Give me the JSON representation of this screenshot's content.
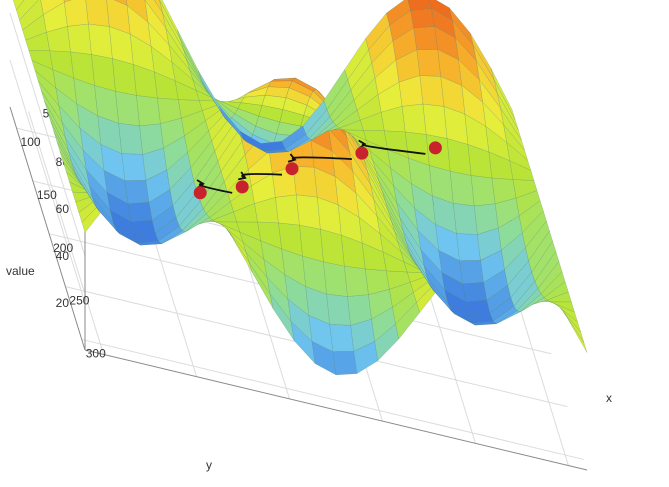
{
  "chart_data": {
    "type": "surface",
    "title": "",
    "xlabel": "x",
    "ylabel": "y",
    "zlabel": "value",
    "x_ticks": [
      50,
      100,
      150,
      200,
      250,
      300
    ],
    "y_ticks": [
      100,
      150,
      200,
      250,
      300
    ],
    "z_ticks": [
      20,
      40,
      60,
      80
    ],
    "x_range": [
      40,
      310
    ],
    "y_range": [
      80,
      310
    ],
    "z_range": [
      0,
      100
    ],
    "surface": {
      "formula": "value = 50 + 40 * sin(2*pi*(x-40)/180) * cos(2*pi*(y-80)/250)",
      "grid_n": 24
    },
    "colorscale": [
      "#2946b8",
      "#3f7fe0",
      "#6fc6ef",
      "#93df8c",
      "#b9e437",
      "#eef03c",
      "#f7b52c",
      "#ef7020",
      "#dc3a22"
    ],
    "path_points": [
      {
        "x": 246,
        "y": 210,
        "value": 80
      },
      {
        "x": 210,
        "y": 190,
        "value": 62
      },
      {
        "x": 175,
        "y": 175,
        "value": 42
      },
      {
        "x": 150,
        "y": 165,
        "value": 25
      },
      {
        "x": 130,
        "y": 150,
        "value": 12
      }
    ],
    "path_color": "#c8232c",
    "arrow_color": "#111111"
  }
}
